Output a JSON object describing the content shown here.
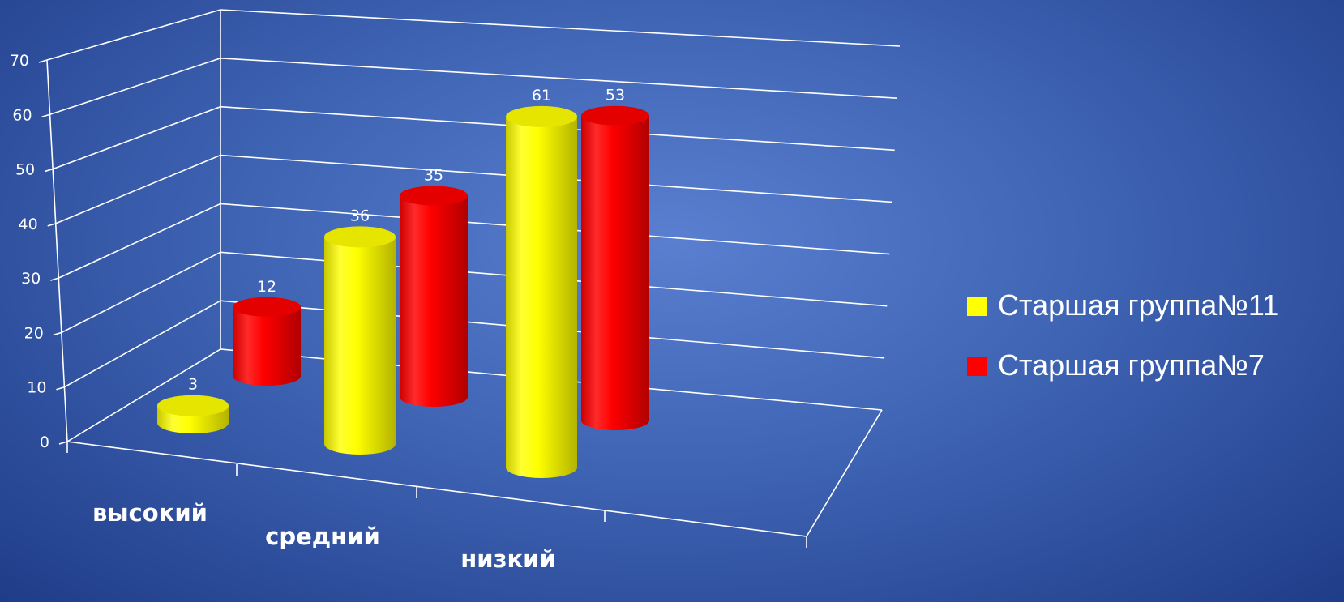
{
  "chart_data": {
    "type": "bar",
    "bar_shape": "cylinder-3d",
    "categories": [
      "высокий",
      "средний",
      "низкий"
    ],
    "series": [
      {
        "name": "Старшая группа№11",
        "color": "#ffff00",
        "values": [
          3,
          36,
          61
        ]
      },
      {
        "name": "Старшая группа№7",
        "color": "#ff0000",
        "values": [
          12,
          35,
          53
        ]
      }
    ],
    "yticks": [
      "0",
      "10",
      "20",
      "30",
      "40",
      "50",
      "60",
      "70"
    ],
    "ylim": [
      0,
      70
    ],
    "grid": true,
    "legend": "right",
    "data_labels": true
  }
}
